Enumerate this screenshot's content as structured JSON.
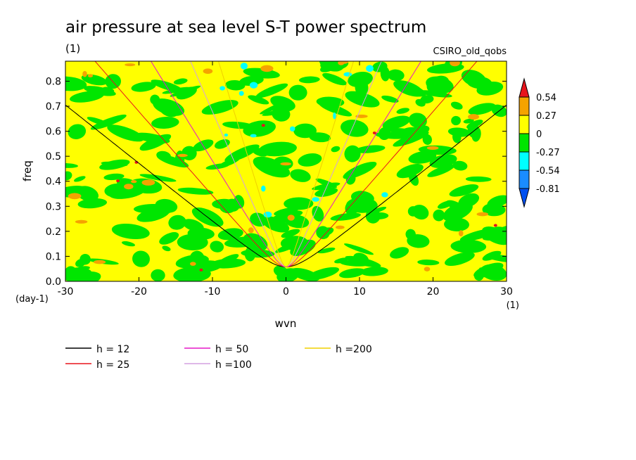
{
  "chart_data": {
    "type": "heatmap",
    "title": "air pressure at sea level S-T power spectrum",
    "subtitle": "(1)",
    "source_label": "CSIRO_old_qobs",
    "xlabel": "wvn",
    "ylabel": "freq",
    "x_unit": "(1)",
    "y_unit": "(day-1)",
    "xlim": [
      -30,
      30
    ],
    "ylim": [
      0,
      0.88
    ],
    "x_ticks": [
      -30,
      -20,
      -10,
      0,
      10,
      20,
      30
    ],
    "x_tick_labels": [
      "-30",
      "-20",
      "-10",
      "0",
      "10",
      "20",
      "30"
    ],
    "y_ticks": [
      0,
      0.1,
      0.2,
      0.3,
      0.4,
      0.5,
      0.6,
      0.7,
      0.8
    ],
    "y_tick_labels": [
      "0.0",
      "0.1",
      "0.2",
      "0.3",
      "0.4",
      "0.5",
      "0.6",
      "0.7",
      "0.8"
    ],
    "colorbar": {
      "levels": [
        0.54,
        0.27,
        0,
        -0.27,
        -0.54,
        -0.81
      ],
      "labels": [
        "0.54",
        "0.27",
        "0",
        "-0.27",
        "-0.54",
        "-0.81"
      ],
      "colors": [
        "#e8141c",
        "#f5a300",
        "#ffff00",
        "#00e600",
        "#00ffff",
        "#1a8cff",
        "#0050f0"
      ]
    },
    "series": [
      {
        "name": "h = 12",
        "color": "#000000",
        "h": 12
      },
      {
        "name": "h = 25",
        "color": "#e8141c",
        "h": 25
      },
      {
        "name": "h = 50",
        "color": "#e619c8",
        "h": 50
      },
      {
        "name": "h =100",
        "color": "#d4a0e0",
        "h": 100
      },
      {
        "name": "h =200",
        "color": "#f0d000",
        "h": 200
      }
    ],
    "legend_position": "bottom"
  }
}
